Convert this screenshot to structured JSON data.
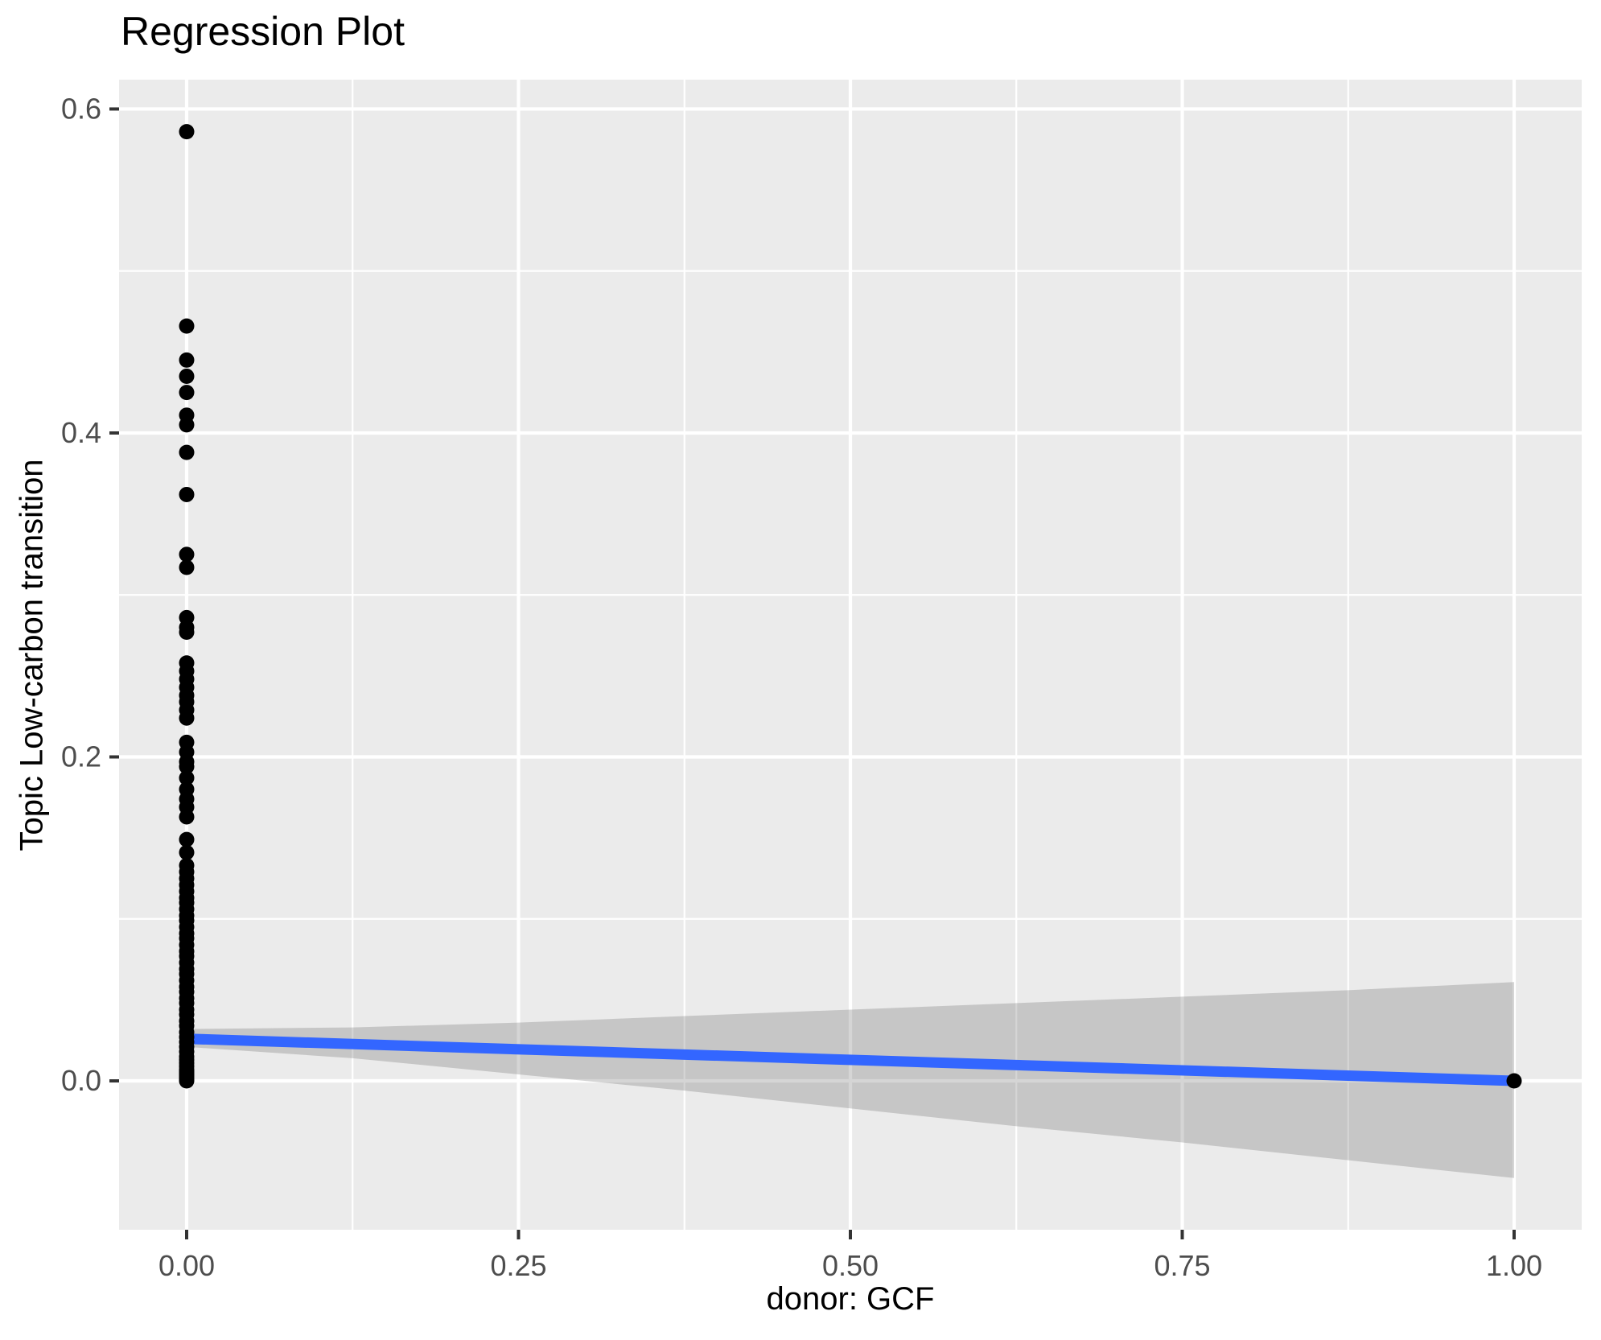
{
  "title": "Regression Plot",
  "chart_data": {
    "type": "scatter",
    "title": "Regression Plot",
    "xlabel": "donor: GCF",
    "ylabel": "Topic Low-carbon transition",
    "grid": true,
    "legend": false,
    "xlim": [
      -0.0509,
      1.0509
    ],
    "ylim": [
      -0.0919,
      0.6181
    ],
    "x_ticks": {
      "values": [
        0,
        0.25,
        0.5,
        0.75,
        1.0
      ],
      "labels": [
        "0.00",
        "0.25",
        "0.50",
        "0.75",
        "1.00"
      ]
    },
    "y_ticks": {
      "values": [
        0,
        0.2,
        0.4,
        0.6
      ],
      "labels": [
        "0.0",
        "0.2",
        "0.4",
        "0.6"
      ]
    },
    "x_minor_breaks": [
      0.125,
      0.375,
      0.625,
      0.875
    ],
    "y_minor_breaks": [
      0.1,
      0.3,
      0.5
    ],
    "series": [
      {
        "name": "observations at donor = 0",
        "x": 0.0,
        "y_values": [
          0.586,
          0.466,
          0.445,
          0.435,
          0.425,
          0.411,
          0.405,
          0.388,
          0.362,
          0.325,
          0.317,
          0.286,
          0.28,
          0.277,
          0.258,
          0.253,
          0.248,
          0.243,
          0.238,
          0.234,
          0.229,
          0.224,
          0.209,
          0.203,
          0.197,
          0.194,
          0.187,
          0.18,
          0.174,
          0.169,
          0.163,
          0.149,
          0.141,
          0.133,
          0.129,
          0.125,
          0.121,
          0.117,
          0.113,
          0.11,
          0.106,
          0.102,
          0.099,
          0.095,
          0.091,
          0.088,
          0.084,
          0.08,
          0.077,
          0.073,
          0.069,
          0.066,
          0.062,
          0.058,
          0.055,
          0.051,
          0.048,
          0.044,
          0.041,
          0.037,
          0.034,
          0.03,
          0.027,
          0.024,
          0.021,
          0.018,
          0.015,
          0.013,
          0.011,
          0.009,
          0.007,
          0.006,
          0.005,
          0.004,
          0.003,
          0.002,
          0.001,
          0.0
        ]
      },
      {
        "name": "observations at donor = 1",
        "x": 1.0,
        "y_values": [
          0.0
        ]
      }
    ],
    "regression_line": {
      "x": [
        0.0,
        1.0
      ],
      "y": [
        0.026,
        0.0
      ]
    },
    "confidence_band": {
      "x": [
        0.0,
        0.125,
        0.25,
        0.375,
        0.5,
        0.625,
        0.75,
        0.875,
        1.0
      ],
      "upper": [
        0.032,
        0.033,
        0.036,
        0.04,
        0.044,
        0.048,
        0.052,
        0.056,
        0.061
      ],
      "lower": [
        0.021,
        0.014,
        0.004,
        -0.006,
        -0.017,
        -0.028,
        -0.038,
        -0.049,
        -0.06
      ]
    },
    "colors": {
      "panel_background": "#EBEBEB",
      "gridline": "#FFFFFF",
      "point": "#000000",
      "regression_line": "#3366FF",
      "confidence_band": "rgba(100,100,100,0.27)",
      "tick_label": "#4D4D4D",
      "tick_mark": "#333333",
      "title_text": "#000000"
    }
  }
}
